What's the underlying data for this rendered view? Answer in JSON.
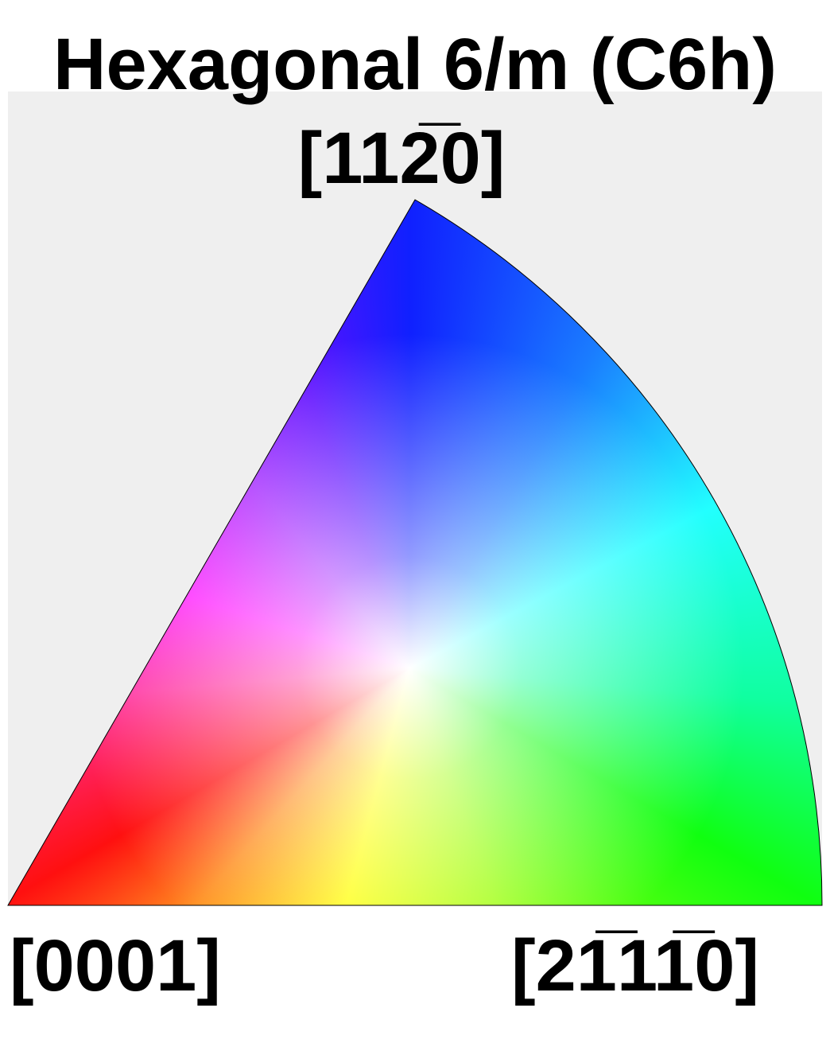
{
  "title": "Hexagonal 6/m (C6h)",
  "labels": {
    "top": "[112̅0]",
    "bottom_left": "[0001]",
    "bottom_right": "[21̅11̅0]"
  }
}
